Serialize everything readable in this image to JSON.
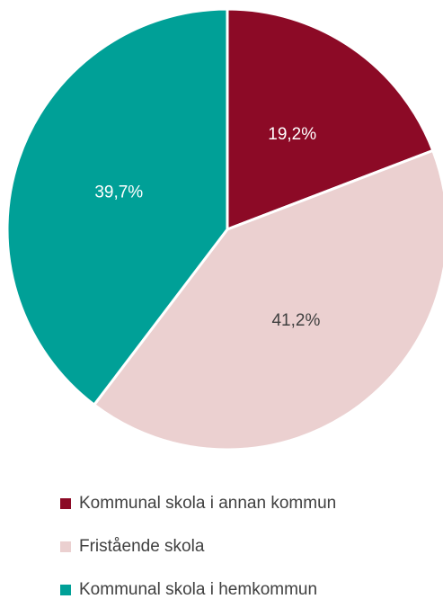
{
  "chart_data": {
    "type": "pie",
    "categories": [
      "Kommunal skola i annan kommun",
      "Fristående skola",
      "Kommunal skola i hemkommun"
    ],
    "values": [
      19.2,
      41.2,
      39.7
    ],
    "value_labels": [
      "19,2%",
      "41,2%",
      "39,7%"
    ],
    "colors": [
      "#8c0a26",
      "#ebd0d0",
      "#00a097"
    ],
    "label_colors": [
      "#ffffff",
      "#404040",
      "#ffffff"
    ],
    "legend": "bottom"
  }
}
